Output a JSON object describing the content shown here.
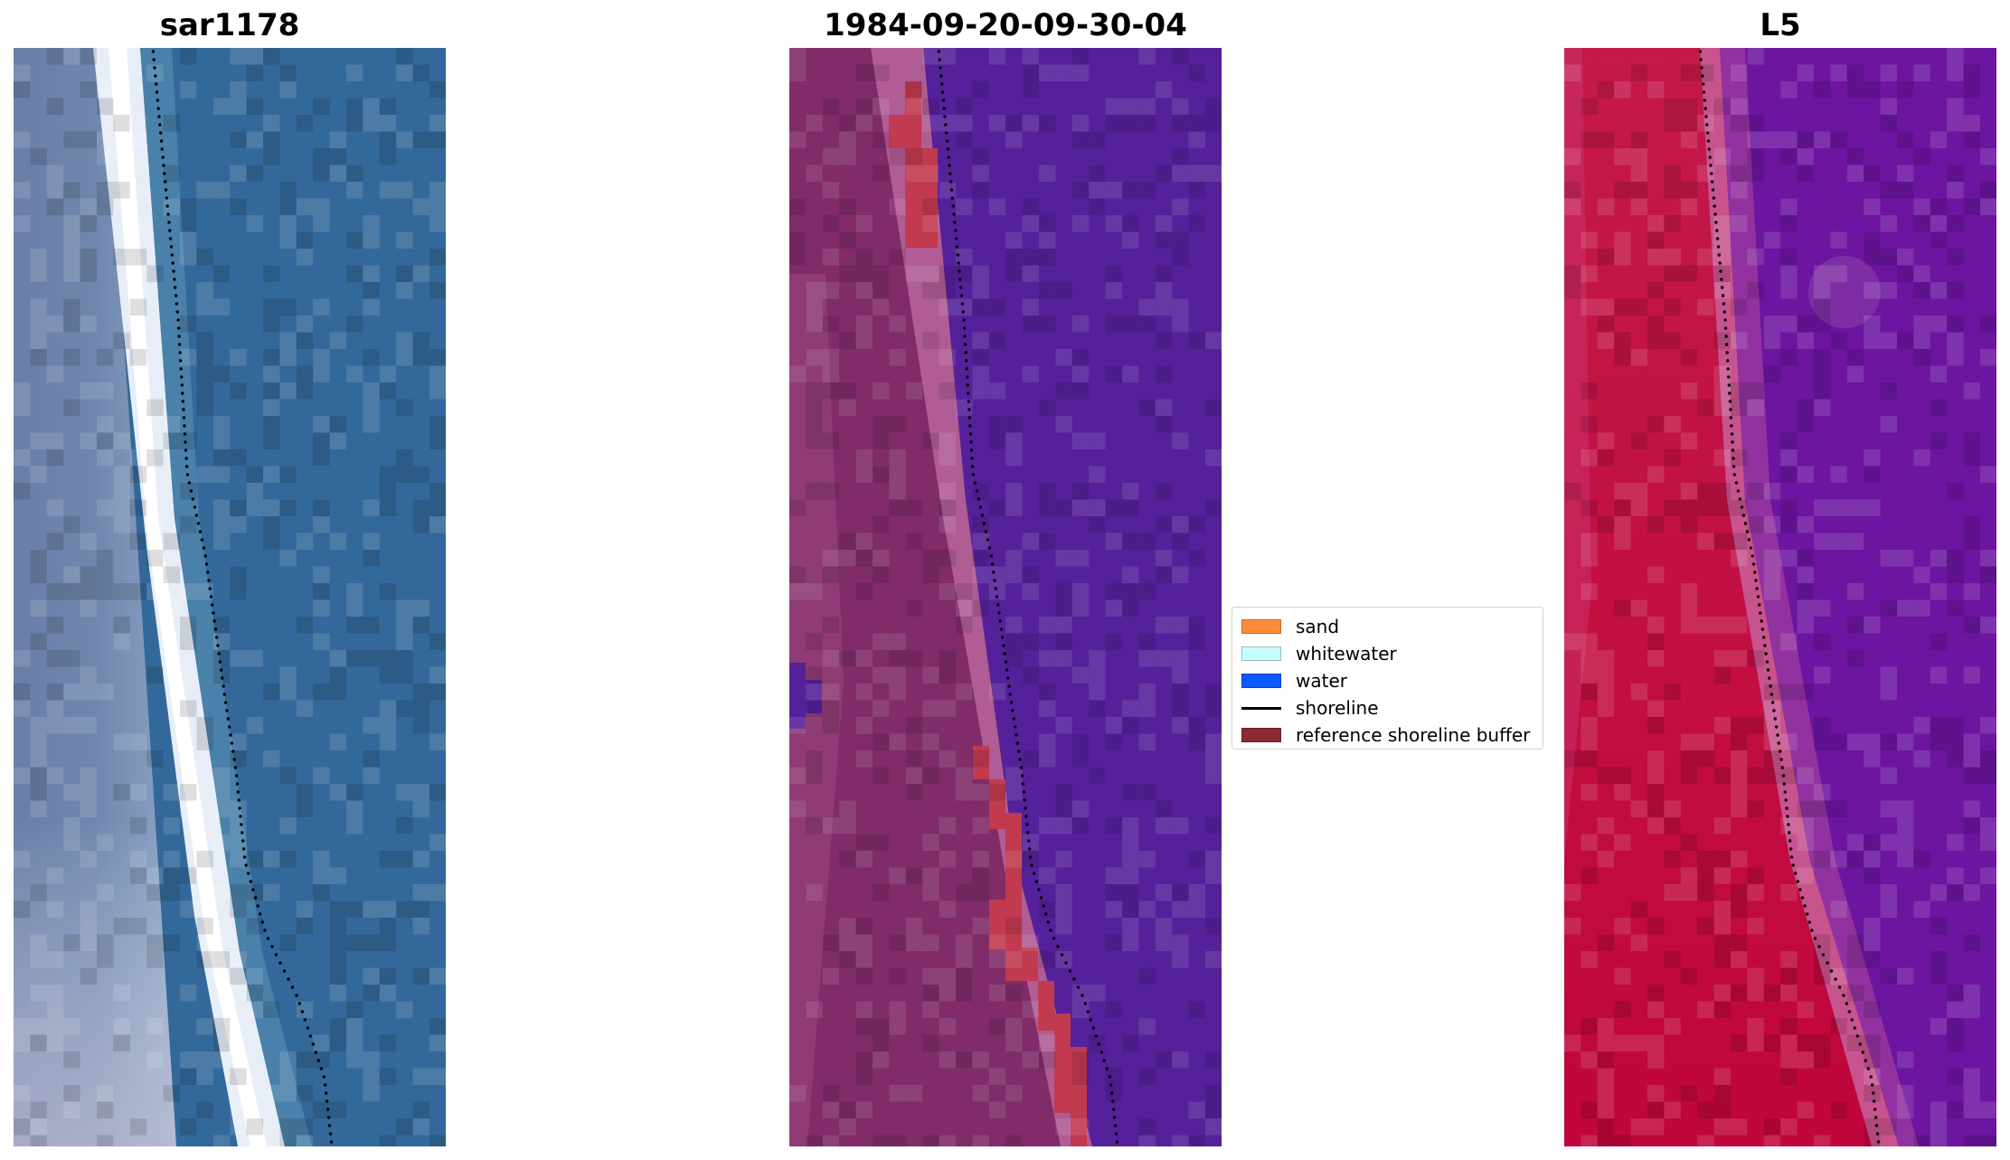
{
  "figure": {
    "panels": [
      {
        "id": "rgb",
        "title": "sar1178",
        "image": "rgb-satellite-image"
      },
      {
        "id": "classified",
        "title": "1984-09-20-09-30-04",
        "image": "classified-image"
      },
      {
        "id": "mndwi",
        "title": "L5",
        "image": "index-image"
      }
    ],
    "legend": {
      "items": [
        {
          "label": "sand",
          "color": "#ff8c3c",
          "kind": "patch"
        },
        {
          "label": "whitewater",
          "color": "#c8ffff",
          "kind": "patch"
        },
        {
          "label": "water",
          "color": "#0a5aff",
          "kind": "patch"
        },
        {
          "label": "shoreline",
          "color": "#000000",
          "kind": "line"
        },
        {
          "label": "reference shoreline buffer",
          "color": "#8c2a32",
          "kind": "patch"
        }
      ]
    }
  }
}
